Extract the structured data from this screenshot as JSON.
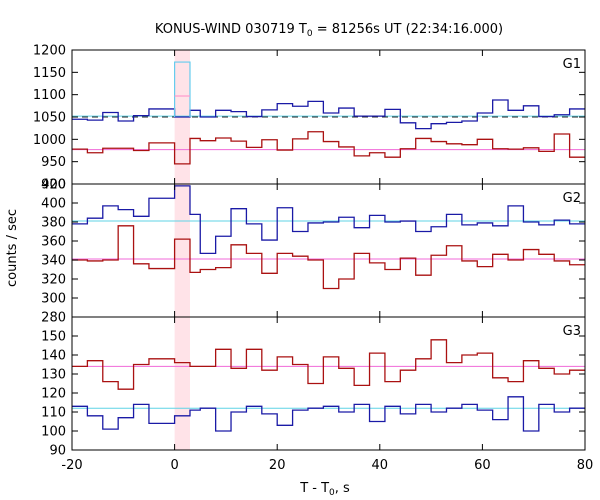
{
  "chart_data": {
    "type": "line",
    "title_main": "KONUS-WIND 030719 T",
    "title_sub": "0",
    "title_rest": " = 81256s UT (22:34:16.000)",
    "xlabel_main": "T - T",
    "xlabel_sub": "0",
    "xlabel_rest": ", s",
    "ylabel": "counts / sec",
    "xlim": [
      -20,
      80
    ],
    "x_ticks": [
      "-20",
      "0",
      "20",
      "40",
      "60",
      "80"
    ],
    "x_tick_values": [
      -20,
      0,
      20,
      40,
      60,
      80
    ],
    "highlight_interval": [
      0,
      3
    ],
    "panels": [
      {
        "name": "G1",
        "ylim": [
          900,
          1200
        ],
        "y_ticks": [
          900,
          950,
          1000,
          1050,
          1100,
          1150,
          1200
        ],
        "y_tick_labels": [
          "900",
          "950",
          "1000",
          "1050",
          "1100",
          "1150",
          "1200"
        ],
        "series": [
          {
            "name": "blue",
            "color": "#1a1aa6",
            "edges": [
              -20,
              -17,
              -14,
              -11,
              -8,
              -5,
              0,
              3,
              5,
              8,
              11,
              14,
              17,
              20,
              23,
              26,
              29,
              32,
              35,
              38,
              41,
              44,
              47,
              50,
              53,
              56,
              59,
              62,
              65,
              68,
              71,
              74,
              77,
              80
            ],
            "values": [
              1045,
              1043,
              1060,
              1041,
              1053,
              1068,
              1050,
              1065,
              1050,
              1065,
              1062,
              1051,
              1066,
              1080,
              1074,
              1085,
              1059,
              1070,
              1052,
              1052,
              1067,
              1037,
              1024,
              1035,
              1038,
              1041,
              1059,
              1088,
              1065,
              1075,
              1051,
              1055,
              1068
            ]
          },
          {
            "name": "red",
            "color": "#aa1111",
            "edges": [
              -20,
              -17,
              -14,
              -11,
              -8,
              -5,
              0,
              3,
              5,
              8,
              11,
              14,
              17,
              20,
              23,
              26,
              29,
              32,
              35,
              38,
              41,
              44,
              47,
              50,
              53,
              56,
              59,
              62,
              65,
              68,
              71,
              74,
              77,
              80
            ],
            "values": [
              978,
              970,
              980,
              980,
              975,
              992,
              945,
              1002,
              997,
              1003,
              996,
              982,
              999,
              976,
              1001,
              1017,
              995,
              983,
              963,
              970,
              960,
              979,
              1002,
              995,
              990,
              988,
              1000,
              979,
              978,
              981,
              973,
              1012,
              960
            ]
          }
        ],
        "peak_box": {
          "x": [
            0,
            3
          ],
          "y": 1173,
          "color": "#66ccee"
        },
        "peak_mark": {
          "x": [
            0,
            3
          ],
          "y": 1097,
          "color": "#ff99cc"
        },
        "background_levels": [
          {
            "value": 1052,
            "color": "#5fd3e6",
            "style": "solid"
          },
          {
            "value": 1050,
            "color": "#000000",
            "style": "dashed"
          },
          {
            "value": 977,
            "color": "#f06ad8",
            "style": "solid"
          }
        ]
      },
      {
        "name": "G2",
        "ylim": [
          280,
          420
        ],
        "y_ticks": [
          280,
          300,
          320,
          340,
          360,
          380,
          400,
          420
        ],
        "y_tick_labels": [
          "280",
          "300",
          "320",
          "340",
          "360",
          "380",
          "400",
          "420"
        ],
        "series": [
          {
            "name": "blue",
            "color": "#1a1aa6",
            "edges": [
              -20,
              -17,
              -14,
              -11,
              -8,
              -5,
              0,
              3,
              5,
              8,
              11,
              14,
              17,
              20,
              23,
              26,
              29,
              32,
              35,
              38,
              41,
              44,
              47,
              50,
              53,
              56,
              59,
              62,
              65,
              68,
              71,
              74,
              77,
              80
            ],
            "values": [
              378,
              384,
              397,
              393,
              386,
              405,
              418,
              388,
              347,
              365,
              394,
              378,
              361,
              395,
              370,
              379,
              380,
              385,
              374,
              387,
              380,
              381,
              370,
              375,
              388,
              377,
              379,
              376,
              397,
              380,
              377,
              382,
              378
            ]
          },
          {
            "name": "red",
            "color": "#aa1111",
            "edges": [
              -20,
              -17,
              -14,
              -11,
              -8,
              -5,
              0,
              3,
              5,
              8,
              11,
              14,
              17,
              20,
              23,
              26,
              29,
              32,
              35,
              38,
              41,
              44,
              47,
              50,
              53,
              56,
              59,
              62,
              65,
              68,
              71,
              74,
              77,
              80
            ],
            "values": [
              340,
              339,
              340,
              376,
              336,
              331,
              362,
              327,
              330,
              332,
              356,
              347,
              326,
              347,
              344,
              340,
              310,
              320,
              347,
              337,
              330,
              342,
              324,
              345,
              355,
              339,
              333,
              346,
              340,
              351,
              346,
              339,
              335
            ]
          }
        ],
        "background_levels": [
          {
            "value": 381,
            "color": "#5fd3e6",
            "style": "solid"
          },
          {
            "value": 341,
            "color": "#f06ad8",
            "style": "solid"
          }
        ]
      },
      {
        "name": "G3",
        "ylim": [
          90,
          160
        ],
        "y_ticks": [
          90,
          100,
          110,
          120,
          130,
          140,
          150
        ],
        "y_tick_labels": [
          "90",
          "100",
          "110",
          "120",
          "130",
          "140",
          "150"
        ],
        "series": [
          {
            "name": "blue",
            "color": "#1a1aa6",
            "edges": [
              -20,
              -17,
              -14,
              -11,
              -8,
              -5,
              0,
              3,
              5,
              8,
              11,
              14,
              17,
              20,
              23,
              26,
              29,
              32,
              35,
              38,
              41,
              44,
              47,
              50,
              53,
              56,
              59,
              62,
              65,
              68,
              71,
              74,
              77,
              80
            ],
            "values": [
              113,
              108,
              101,
              107,
              114,
              104,
              108,
              111,
              112,
              100,
              110,
              113,
              109,
              103,
              111,
              112,
              113,
              110,
              114,
              105,
              113,
              109,
              114,
              110,
              112,
              114,
              111,
              106,
              118,
              100,
              114,
              110,
              112
            ]
          },
          {
            "name": "red",
            "color": "#aa1111",
            "edges": [
              -20,
              -17,
              -14,
              -11,
              -8,
              -5,
              0,
              3,
              5,
              8,
              11,
              14,
              17,
              20,
              23,
              26,
              29,
              32,
              35,
              38,
              41,
              44,
              47,
              50,
              53,
              56,
              59,
              62,
              65,
              68,
              71,
              74,
              77,
              80
            ],
            "values": [
              134,
              137,
              126,
              122,
              135,
              138,
              136,
              134,
              134,
              143,
              133,
              143,
              132,
              139,
              135,
              125,
              139,
              133,
              124,
              141,
              126,
              132,
              138,
              148,
              136,
              140,
              141,
              128,
              126,
              137,
              133,
              130,
              132
            ]
          }
        ],
        "background_levels": [
          {
            "value": 112,
            "color": "#5fd3e6",
            "style": "solid"
          },
          {
            "value": 134,
            "color": "#f06ad8",
            "style": "solid"
          }
        ]
      }
    ]
  }
}
